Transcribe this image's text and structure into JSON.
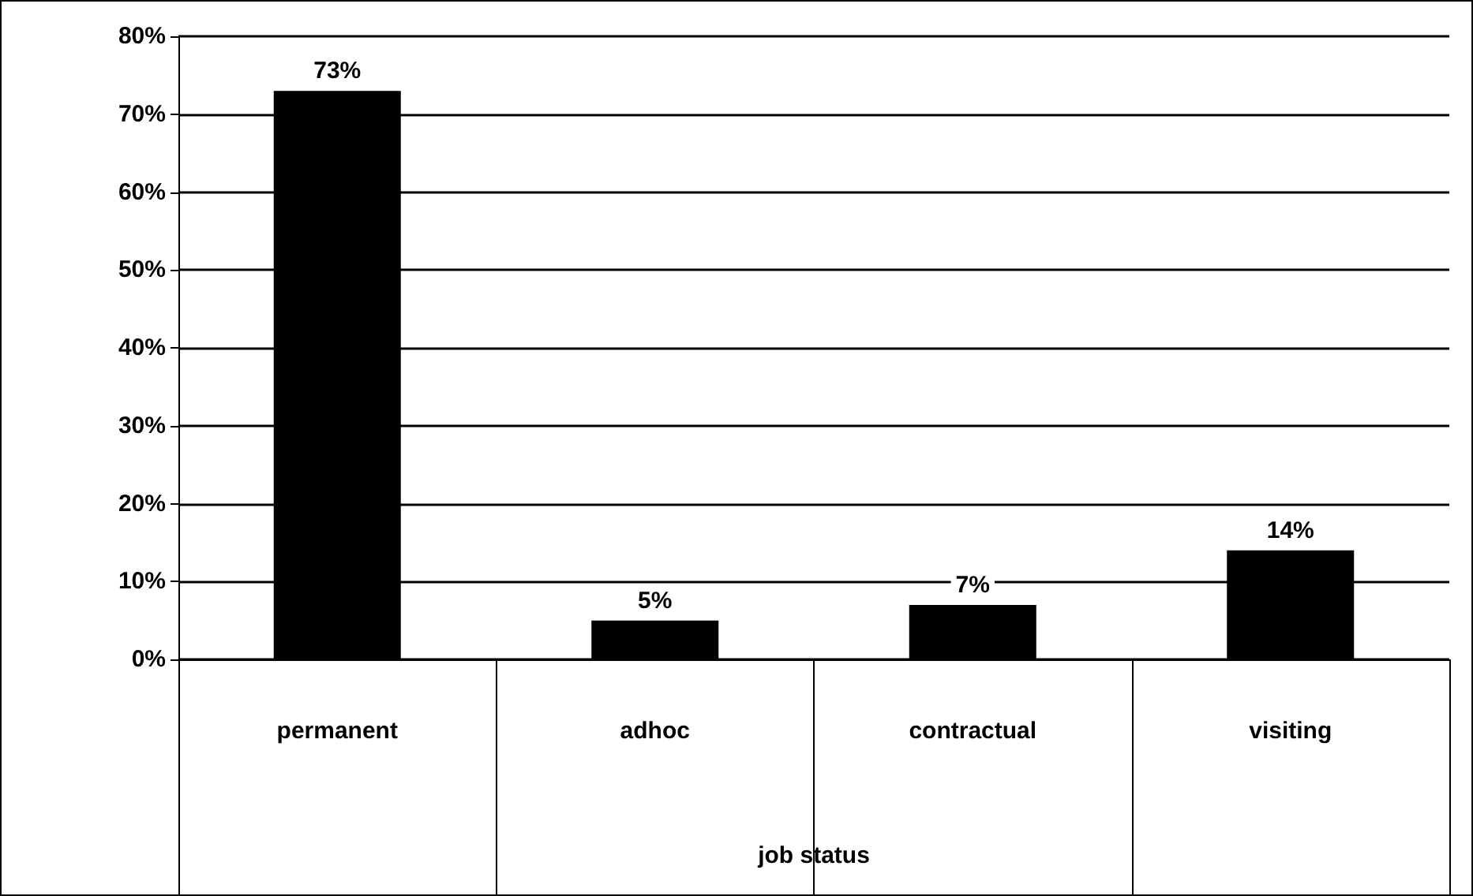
{
  "chart_data": {
    "type": "bar",
    "xlabel": "job status",
    "categories": [
      "permanent",
      "adhoc",
      "contractual",
      "visiting"
    ],
    "values": [
      73,
      5,
      7,
      14
    ],
    "color": "#000000",
    "value_labels": [
      "73%",
      "5%",
      "7%",
      "14%"
    ],
    "ylim": [
      0,
      80
    ],
    "yticks": [
      {
        "value": 0,
        "label": "0%"
      },
      {
        "value": 10,
        "label": "10%"
      },
      {
        "value": 20,
        "label": "20%"
      },
      {
        "value": 30,
        "label": "30%"
      },
      {
        "value": 40,
        "label": "40%"
      },
      {
        "value": 50,
        "label": "50%"
      },
      {
        "value": 60,
        "label": "60%"
      },
      {
        "value": 70,
        "label": "70%"
      },
      {
        "value": 80,
        "label": "80%"
      }
    ],
    "grid": "y"
  }
}
